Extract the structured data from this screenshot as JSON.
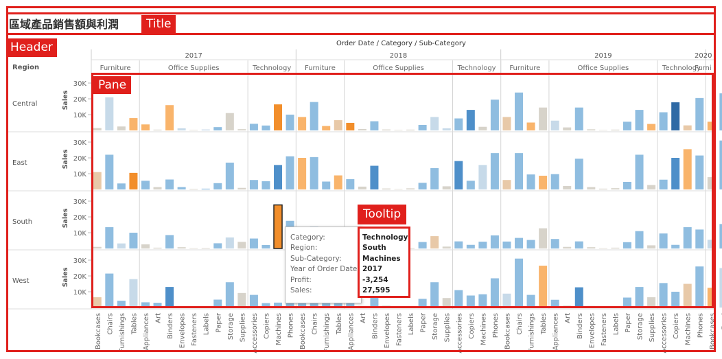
{
  "title": {
    "text": "區域產品銷售額與利潤"
  },
  "header": {
    "dimension_caption": "Order Date / Category / Sub-Category",
    "row_dimension_label": "Region",
    "years": [
      "2017",
      "2018",
      "2019",
      "2020"
    ],
    "categories": [
      {
        "year": "2017",
        "label": "Furniture"
      },
      {
        "year": "2017",
        "label": "Office Supplies"
      },
      {
        "year": "2017",
        "label": "Technology"
      },
      {
        "year": "2018",
        "label": "Furniture"
      },
      {
        "year": "2018",
        "label": "Office Supplies"
      },
      {
        "year": "2018",
        "label": "Technology"
      },
      {
        "year": "2019",
        "label": "Furniture"
      },
      {
        "year": "2019",
        "label": "Office Supplies"
      },
      {
        "year": "2019",
        "label": "Technology"
      },
      {
        "year": "2020",
        "label": "Furni"
      }
    ]
  },
  "annotations": {
    "title_label": "Title",
    "header_label": "Header",
    "pane_label": "Pane",
    "tooltip_label": "Tooltip"
  },
  "tooltip": {
    "rows": [
      {
        "label": "Category:",
        "value": "Technology"
      },
      {
        "label": "Region:",
        "value": "South"
      },
      {
        "label": "Sub-Category:",
        "value": "Machines"
      },
      {
        "label": "Year of Order Date:",
        "value": "2017"
      },
      {
        "label": "Profit:",
        "value": "-3,254"
      },
      {
        "label": "Sales:",
        "value": "27,595"
      }
    ]
  },
  "chart_data": {
    "type": "bar",
    "measure": "Sales",
    "y_ticks": [
      "10K",
      "20K",
      "30K"
    ],
    "ylim": [
      0,
      35000
    ],
    "color_encoding": "Profit",
    "colors": {
      "strong_negative": "#f28e2b",
      "negative": "#f9b46b",
      "slight_negative": "#e8c9a8",
      "neutral": "#d7d3ca",
      "slight_positive": "#c7dae9",
      "positive": "#8fbde0",
      "strong_positive": "#4e8fc9",
      "very_strong_positive": "#2f6aa5",
      "highlight_outline": "#222222"
    },
    "regions": [
      "Central",
      "East",
      "South",
      "West"
    ],
    "sub_categories": [
      "Bookcases",
      "Chairs",
      "Furnishings",
      "Tables",
      "Appliances",
      "Art",
      "Binders",
      "Envelopes",
      "Fasteners",
      "Labels",
      "Paper",
      "Storage",
      "Supplies",
      "Accessories",
      "Copiers",
      "Machines",
      "Phones",
      "Bookcases",
      "Chairs",
      "Furnishings",
      "Tables",
      "Appliances",
      "Art",
      "Binders",
      "Envelopes",
      "Fasteners",
      "Labels",
      "Paper",
      "Storage",
      "Supplies",
      "Accessories",
      "Copiers",
      "Machines",
      "Phones",
      "Bookcases",
      "Chairs",
      "Furnishings",
      "Tables",
      "Appliances",
      "Art",
      "Binders",
      "Envelopes",
      "Fasteners",
      "Labels",
      "Paper",
      "Storage",
      "Supplies",
      "Accessories",
      "Copiers",
      "Machines",
      "Phones",
      "Bookcases",
      "Furni"
    ],
    "series": [
      {
        "region": "Central",
        "values": [
          1500,
          21000,
          2500,
          7800,
          3800,
          500,
          16000,
          1300,
          300,
          600,
          2100,
          11000,
          800,
          4200,
          3100,
          16500,
          10000,
          8500,
          18000,
          2800,
          6500,
          4800,
          900,
          5800,
          600,
          300,
          500,
          3500,
          8500,
          1300,
          7600,
          13000,
          2300,
          19500,
          8500,
          24000,
          5000,
          14500,
          6200,
          1900,
          14500,
          700,
          250,
          500,
          5500,
          13000,
          4100,
          11500,
          17800,
          3200,
          20500,
          5500,
          23500
        ],
        "colors": [
          "neutral",
          "slight_positive",
          "neutral",
          "negative",
          "negative",
          "neutral",
          "negative",
          "slight_positive",
          "neutral",
          "slight_positive",
          "positive",
          "neutral",
          "neutral",
          "positive",
          "positive",
          "strong_negative",
          "positive",
          "negative",
          "positive",
          "negative",
          "slight_negative",
          "strong_negative",
          "neutral",
          "positive",
          "neutral",
          "neutral",
          "neutral",
          "positive",
          "slight_positive",
          "slight_positive",
          "positive",
          "strong_positive",
          "neutral",
          "positive",
          "slight_negative",
          "positive",
          "negative",
          "neutral",
          "slight_positive",
          "neutral",
          "positive",
          "neutral",
          "neutral",
          "neutral",
          "positive",
          "positive",
          "negative",
          "positive",
          "very_strong_positive",
          "slight_negative",
          "positive",
          "negative",
          "positive"
        ]
      },
      {
        "region": "East",
        "values": [
          11000,
          22000,
          3800,
          10500,
          5500,
          1500,
          6300,
          1500,
          400,
          500,
          4000,
          17000,
          1000,
          6000,
          5200,
          15500,
          21000,
          20000,
          20500,
          5000,
          8900,
          6500,
          1800,
          15000,
          600,
          300,
          700,
          4200,
          13500,
          2000,
          18000,
          5500,
          15500,
          23000,
          6000,
          23000,
          9500,
          8700,
          9700,
          2200,
          19500,
          1500,
          500,
          800,
          4800,
          22000,
          2800,
          6200,
          20000,
          25500,
          21500,
          7800,
          31000
        ],
        "colors": [
          "slight_negative",
          "positive",
          "positive",
          "strong_negative",
          "positive",
          "neutral",
          "positive",
          "positive",
          "neutral",
          "positive",
          "positive",
          "positive",
          "neutral",
          "positive",
          "positive",
          "strong_positive",
          "positive",
          "negative",
          "positive",
          "positive",
          "negative",
          "positive",
          "neutral",
          "strong_positive",
          "neutral",
          "neutral",
          "neutral",
          "positive",
          "positive",
          "neutral",
          "strong_positive",
          "positive",
          "slight_positive",
          "positive",
          "slight_negative",
          "positive",
          "positive",
          "negative",
          "positive",
          "neutral",
          "positive",
          "neutral",
          "neutral",
          "neutral",
          "positive",
          "positive",
          "neutral",
          "positive",
          "strong_positive",
          "negative",
          "positive",
          "neutral",
          "positive"
        ]
      },
      {
        "region": "South",
        "values": [
          1000,
          13500,
          3200,
          10000,
          2600,
          500,
          8500,
          800,
          300,
          400,
          3300,
          7000,
          4200,
          6300,
          2200,
          27595,
          17500,
          6000,
          14000,
          2500,
          9500,
          3500,
          900,
          7700,
          700,
          300,
          400,
          4100,
          7800,
          1200,
          4500,
          2300,
          4300,
          8300,
          4400,
          6700,
          5400,
          12800,
          6000,
          1000,
          4500,
          800,
          300,
          500,
          4000,
          11000,
          2000,
          9500,
          2300,
          13500,
          12000,
          5500,
          15500
        ],
        "colors": [
          "neutral",
          "positive",
          "slight_positive",
          "positive",
          "neutral",
          "neutral",
          "positive",
          "neutral",
          "neutral",
          "neutral",
          "positive",
          "slight_positive",
          "neutral",
          "positive",
          "positive",
          "strong_negative",
          "positive",
          "positive",
          "positive",
          "positive",
          "positive",
          "positive",
          "neutral",
          "positive",
          "neutral",
          "neutral",
          "neutral",
          "positive",
          "slight_negative",
          "neutral",
          "positive",
          "positive",
          "positive",
          "positive",
          "positive",
          "positive",
          "positive",
          "neutral",
          "positive",
          "neutral",
          "positive",
          "neutral",
          "neutral",
          "neutral",
          "positive",
          "positive",
          "neutral",
          "positive",
          "positive",
          "positive",
          "positive",
          "slight_positive",
          "positive"
        ]
      },
      {
        "region": "West",
        "values": [
          6500,
          21500,
          4300,
          18000,
          3300,
          3000,
          13000,
          600,
          300,
          400,
          5000,
          16000,
          9200,
          8000,
          2800,
          3100,
          17500,
          16000,
          21000,
          6700,
          7800,
          7500,
          1000,
          12000,
          1200,
          400,
          600,
          5500,
          16000,
          6000,
          11000,
          7600,
          8400,
          18500,
          8800,
          31000,
          8000,
          26500,
          4900,
          1200,
          12800,
          1000,
          400,
          600,
          6300,
          13000,
          6500,
          15500,
          10000,
          15000,
          26000,
          12500,
          25000
        ],
        "colors": [
          "slight_negative",
          "positive",
          "positive",
          "slight_positive",
          "positive",
          "positive",
          "strong_positive",
          "neutral",
          "neutral",
          "neutral",
          "positive",
          "positive",
          "neutral",
          "positive",
          "positive",
          "positive",
          "positive",
          "positive",
          "positive",
          "positive",
          "positive",
          "positive",
          "neutral",
          "positive",
          "neutral",
          "neutral",
          "neutral",
          "positive",
          "positive",
          "neutral",
          "positive",
          "positive",
          "positive",
          "positive",
          "slight_positive",
          "positive",
          "positive",
          "negative",
          "positive",
          "neutral",
          "strong_positive",
          "neutral",
          "neutral",
          "neutral",
          "positive",
          "positive",
          "neutral",
          "positive",
          "positive",
          "slight_negative",
          "positive",
          "negative",
          "slight_positive"
        ]
      }
    ],
    "highlighted": {
      "region": "South",
      "index": 15
    }
  }
}
